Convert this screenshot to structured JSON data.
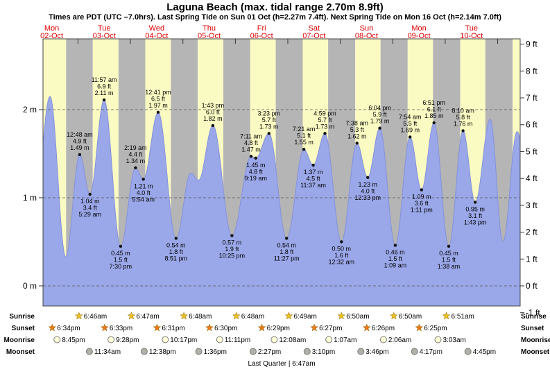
{
  "header": {
    "title": "Laguna Beach (max. tidal range 2.70m 8.9ft)",
    "subtitle": "Times are PDT (UTC –7.0hrs). Last Spring Tide on Sun 01 Oct (h=2.27m 7.4ft). Next Spring Tide on Mon 16 Oct (h=2.14m 7.0ft)"
  },
  "colors": {
    "day_band": "#fafac3",
    "night_band": "#b5b5b5",
    "tide_fill": "#9aa7e8",
    "tide_stroke": "#8492dc",
    "date_label": "#dd0000",
    "annotation_text": "#000000",
    "sunrise_star": "#e8c020",
    "sunset_star": "#e87818",
    "moonrise_disc": "#ffffd8",
    "moonset_disc": "#b0b0a8"
  },
  "chart_data": {
    "type": "area",
    "title": "Tide height curve for Laguna Beach, Mon 02-Oct to Tue 10-Oct",
    "x_axis": {
      "unit": "hours since Mon 02-Oct 00:00 PDT",
      "visible_range": [
        8,
        226.3
      ]
    },
    "days": [
      {
        "weekday": "Mon",
        "date": "02-Oct"
      },
      {
        "weekday": "Tue",
        "date": "03-Oct"
      },
      {
        "weekday": "Wed",
        "date": "04-Oct"
      },
      {
        "weekday": "Thu",
        "date": "05-Oct"
      },
      {
        "weekday": "Fri",
        "date": "06-Oct"
      },
      {
        "weekday": "Sat",
        "date": "07-Oct"
      },
      {
        "weekday": "Sun",
        "date": "08-Oct"
      },
      {
        "weekday": "Mon",
        "date": "09-Oct"
      },
      {
        "weekday": "Tue",
        "date": "10-Oct"
      }
    ],
    "y_ticks_m": [
      {
        "v": 0,
        "label": "0 m"
      },
      {
        "v": 1,
        "label": "1 m"
      },
      {
        "v": 2,
        "label": "2 m"
      }
    ],
    "y_ticks_ft": [
      {
        "v": -1,
        "label": "-1 ft"
      },
      {
        "v": 0,
        "label": "0 ft"
      },
      {
        "v": 1,
        "label": "1 ft"
      },
      {
        "v": 2,
        "label": "2 ft"
      },
      {
        "v": 3,
        "label": "3 ft"
      },
      {
        "v": 4,
        "label": "4 ft"
      },
      {
        "v": 5,
        "label": "5 ft"
      },
      {
        "v": 6,
        "label": "6 ft"
      },
      {
        "v": 7,
        "label": "7 ft"
      },
      {
        "v": 8,
        "label": "8 ft"
      },
      {
        "v": 9,
        "label": "9 ft"
      }
    ],
    "extremes": [
      {
        "t": 4.7,
        "h": 1.05,
        "type": "low",
        "annotated": false
      },
      {
        "t": 11.2,
        "h": 2.15,
        "type": "high",
        "annotated": false
      },
      {
        "t": 18.4,
        "h": 0.33,
        "type": "low",
        "annotated": false
      },
      {
        "t": 24.8,
        "h": 1.49,
        "type": "high",
        "time": "12:48 am",
        "ft": "4.9 ft",
        "m": "1.49 m"
      },
      {
        "t": 29.48,
        "h": 1.04,
        "type": "low",
        "time": "5:29 am",
        "ft": "3.4 ft",
        "m": "1.04 m"
      },
      {
        "t": 35.95,
        "h": 2.11,
        "type": "high",
        "time": "11:57 am",
        "ft": "6.9 ft",
        "m": "2.11 m"
      },
      {
        "t": 43.5,
        "h": 0.45,
        "type": "low",
        "time": "7:30 pm",
        "ft": "1.5 ft",
        "m": "0.45 m"
      },
      {
        "t": 50.32,
        "h": 1.34,
        "type": "high",
        "time": "2:19 am",
        "ft": "4.4 ft",
        "m": "1.34 m"
      },
      {
        "t": 53.9,
        "h": 1.21,
        "type": "low",
        "time": "5:54 am",
        "ft": "4.0 ft",
        "m": "1.21 m"
      },
      {
        "t": 60.68,
        "h": 1.97,
        "type": "high",
        "time": "12:41 pm",
        "ft": "6.5 ft",
        "m": "1.97 m"
      },
      {
        "t": 68.85,
        "h": 0.54,
        "type": "low",
        "time": "8:51 pm",
        "ft": "1.8 ft",
        "m": "0.54 m"
      },
      {
        "t": 75.6,
        "h": 1.28,
        "type": "high",
        "annotated": false
      },
      {
        "t": 79.2,
        "h": 1.2,
        "type": "low",
        "annotated": false
      },
      {
        "t": 85.72,
        "h": 1.82,
        "type": "high",
        "time": "1:43 pm",
        "ft": "6.0 ft",
        "m": "1.82 m"
      },
      {
        "t": 94.42,
        "h": 0.57,
        "type": "low",
        "time": "10:25 pm",
        "ft": "1.9 ft",
        "m": "0.57 m"
      },
      {
        "t": 103.18,
        "h": 1.47,
        "type": "high",
        "time": "7:11 am",
        "ft": "4.8 ft",
        "m": "1.47 m"
      },
      {
        "t": 105.32,
        "h": 1.45,
        "type": "low",
        "time": "9:19 am",
        "ft": "4.8 ft",
        "m": "1.45 m"
      },
      {
        "t": 111.38,
        "h": 1.73,
        "type": "high",
        "time": "3:23 pm",
        "ft": "5.7 ft",
        "m": "1.73 m"
      },
      {
        "t": 119.45,
        "h": 0.54,
        "type": "low",
        "time": "11:27 pm",
        "ft": "1.8 ft",
        "m": "0.54 m"
      },
      {
        "t": 127.35,
        "h": 1.55,
        "type": "high",
        "time": "7:21 am",
        "ft": "5.1 ft",
        "m": "1.55 m"
      },
      {
        "t": 131.62,
        "h": 1.37,
        "type": "low",
        "time": "11:37 am",
        "ft": "4.5 ft",
        "m": "1.37 m"
      },
      {
        "t": 136.98,
        "h": 1.73,
        "type": "high",
        "time": "4:59 pm",
        "ft": "5.7 ft",
        "m": "1.73 m"
      },
      {
        "t": 144.53,
        "h": 0.5,
        "type": "low",
        "time": "12:32 am",
        "ft": "1.6 ft",
        "m": "0.50 m"
      },
      {
        "t": 151.63,
        "h": 1.62,
        "type": "high",
        "time": "7:38 am",
        "ft": "5.3 ft",
        "m": "1.62 m"
      },
      {
        "t": 156.55,
        "h": 1.23,
        "type": "low",
        "time": "12:33 pm",
        "ft": "4.0 ft",
        "m": "1.23 m"
      },
      {
        "t": 162.07,
        "h": 1.79,
        "type": "high",
        "time": "6:04 pm",
        "ft": "5.9 ft",
        "m": "1.79 m"
      },
      {
        "t": 169.15,
        "h": 0.46,
        "type": "low",
        "time": "1:09 am",
        "ft": "1.5 ft",
        "m": "0.46 m"
      },
      {
        "t": 175.9,
        "h": 1.69,
        "type": "high",
        "time": "7:54 am",
        "ft": "5.5 ft",
        "m": "1.69 m"
      },
      {
        "t": 181.18,
        "h": 1.09,
        "type": "low",
        "time": "1:11 pm",
        "ft": "3.6 ft",
        "m": "1.09 m"
      },
      {
        "t": 186.85,
        "h": 1.85,
        "type": "high",
        "time": "6:51 pm",
        "ft": "6.1 ft",
        "m": "1.85 m"
      },
      {
        "t": 193.63,
        "h": 0.45,
        "type": "low",
        "time": "1:38 am",
        "ft": "1.5 ft",
        "m": "0.45 m"
      },
      {
        "t": 200.17,
        "h": 1.76,
        "type": "high",
        "time": "8:10 am",
        "ft": "5.8 ft",
        "m": "1.76 m"
      },
      {
        "t": 205.72,
        "h": 0.95,
        "type": "low",
        "time": "1:43 pm",
        "ft": "3.1 ft",
        "m": "0.95 m"
      },
      {
        "t": 212.6,
        "h": 1.89,
        "type": "high",
        "annotated": false
      },
      {
        "t": 218.4,
        "h": 0.5,
        "type": "low",
        "annotated": false
      },
      {
        "t": 224.9,
        "h": 1.75,
        "type": "high",
        "annotated": false
      },
      {
        "t": 231.5,
        "h": 0.9,
        "type": "low",
        "annotated": false
      }
    ]
  },
  "astro": {
    "row_labels": [
      "Sunrise",
      "Sunset",
      "Moonrise",
      "Moonset"
    ],
    "sunrise": [
      {
        "day": 1,
        "time": "6:46am"
      },
      {
        "day": 2,
        "time": "6:47am"
      },
      {
        "day": 3,
        "time": "6:48am"
      },
      {
        "day": 4,
        "time": "6:48am"
      },
      {
        "day": 5,
        "time": "6:49am"
      },
      {
        "day": 6,
        "time": "6:50am"
      },
      {
        "day": 7,
        "time": "6:50am"
      },
      {
        "day": 8,
        "time": "6:51am"
      }
    ],
    "sunset": [
      {
        "day": 0,
        "time": "6:34pm"
      },
      {
        "day": 1,
        "time": "6:33pm"
      },
      {
        "day": 2,
        "time": "6:31pm"
      },
      {
        "day": 3,
        "time": "6:30pm"
      },
      {
        "day": 4,
        "time": "6:29pm"
      },
      {
        "day": 5,
        "time": "6:27pm"
      },
      {
        "day": 6,
        "time": "6:26pm"
      },
      {
        "day": 7,
        "time": "6:25pm"
      }
    ],
    "moonrise": [
      {
        "day": 0,
        "time": "8:45pm"
      },
      {
        "day": 1,
        "time": "9:28pm"
      },
      {
        "day": 2,
        "time": "10:17pm"
      },
      {
        "day": 3,
        "time": "11:11pm"
      },
      {
        "day": 5,
        "time": "12:08am"
      },
      {
        "day": 6,
        "time": "1:07am"
      },
      {
        "day": 7,
        "time": "2:06am"
      },
      {
        "day": 8,
        "time": "3:03am"
      }
    ],
    "moonset": [
      {
        "day": 1,
        "time": "11:34am"
      },
      {
        "day": 2,
        "time": "12:38pm"
      },
      {
        "day": 3,
        "time": "1:36pm"
      },
      {
        "day": 4,
        "time": "2:27pm"
      },
      {
        "day": 5,
        "time": "3:10pm"
      },
      {
        "day": 6,
        "time": "3:46pm"
      },
      {
        "day": 7,
        "time": "4:17pm"
      },
      {
        "day": 8,
        "time": "4:45pm"
      }
    ],
    "moon_phase": "Last Quarter | 6:47am"
  }
}
